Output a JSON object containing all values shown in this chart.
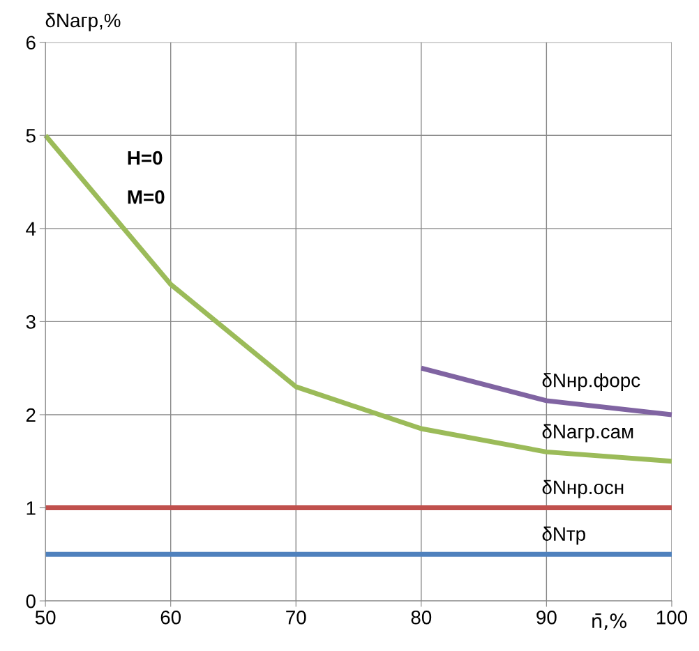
{
  "chart_data": {
    "type": "line",
    "xlabel": "n̄,%",
    "ylabel": "δNагр,%",
    "x": [
      50,
      60,
      70,
      80,
      90,
      100
    ],
    "series": [
      {
        "name": "δNнр.форс",
        "color": "#8064a2",
        "x": [
          80,
          90,
          100
        ],
        "values": [
          2.5,
          2.15,
          2.0
        ]
      },
      {
        "name": "δNагр.сам",
        "color": "#9bbb59",
        "values": [
          5.0,
          3.4,
          2.3,
          1.85,
          1.6,
          1.5
        ]
      },
      {
        "name": "δNнр.осн",
        "color": "#c0504d",
        "values": [
          1,
          1,
          1,
          1,
          1,
          1
        ]
      },
      {
        "name": "δNтр",
        "color": "#4f81bd",
        "values": [
          0.5,
          0.5,
          0.5,
          0.5,
          0.5,
          0.5
        ]
      }
    ],
    "annotations": [
      "Н=0",
      "М=0"
    ],
    "xlim": [
      50,
      100
    ],
    "xticks": [
      50,
      60,
      70,
      80,
      90,
      100
    ],
    "ylim": [
      0,
      6
    ],
    "yticks": [
      0,
      1,
      2,
      3,
      4,
      5,
      6
    ],
    "grid": true,
    "legend": false,
    "marker": "none",
    "line_style": "solid"
  }
}
